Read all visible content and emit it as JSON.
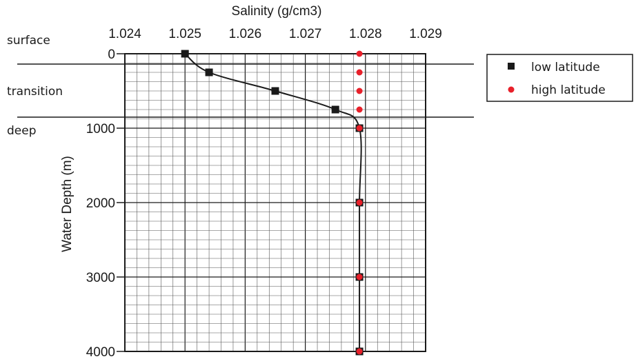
{
  "chart_data": {
    "type": "scatter",
    "title": "",
    "xlabel": "Salinity (g/cm3)",
    "ylabel": "Water Depth (m)",
    "xlim": [
      1.024,
      1.029
    ],
    "ylim": [
      0,
      4000
    ],
    "x_axis_position": "top",
    "y_axis_inverted": true,
    "x_ticks": [
      1.024,
      1.025,
      1.026,
      1.027,
      1.028,
      1.029
    ],
    "x_tick_labels": [
      "1.024",
      "1.025",
      "1.026",
      "1.027",
      "1.028",
      "1.029"
    ],
    "y_ticks": [
      0,
      1000,
      2000,
      3000,
      4000
    ],
    "y_tick_labels": [
      "0",
      "1000",
      "2000",
      "3000",
      "4000"
    ],
    "grid": true,
    "legend_position": "right",
    "series": [
      {
        "name": "low latitude",
        "marker": "square",
        "color": "#1a1a1a",
        "connected": true,
        "points": [
          {
            "x": 1.025,
            "y": 0
          },
          {
            "x": 1.0254,
            "y": 250
          },
          {
            "x": 1.0265,
            "y": 500
          },
          {
            "x": 1.0275,
            "y": 750
          },
          {
            "x": 1.0279,
            "y": 1000
          },
          {
            "x": 1.0279,
            "y": 2000
          },
          {
            "x": 1.0279,
            "y": 3000
          },
          {
            "x": 1.0279,
            "y": 4000
          }
        ]
      },
      {
        "name": "high latitude",
        "marker": "circle",
        "color": "#e8202a",
        "connected": false,
        "points": [
          {
            "x": 1.0279,
            "y": 0
          },
          {
            "x": 1.0279,
            "y": 250
          },
          {
            "x": 1.0279,
            "y": 500
          },
          {
            "x": 1.0279,
            "y": 750
          },
          {
            "x": 1.0279,
            "y": 1000
          },
          {
            "x": 1.0279,
            "y": 2000
          },
          {
            "x": 1.0279,
            "y": 3000
          },
          {
            "x": 1.0279,
            "y": 4000
          }
        ]
      }
    ],
    "zones": [
      {
        "label": "surface"
      },
      {
        "label": "transition"
      },
      {
        "label": "deep"
      }
    ]
  }
}
